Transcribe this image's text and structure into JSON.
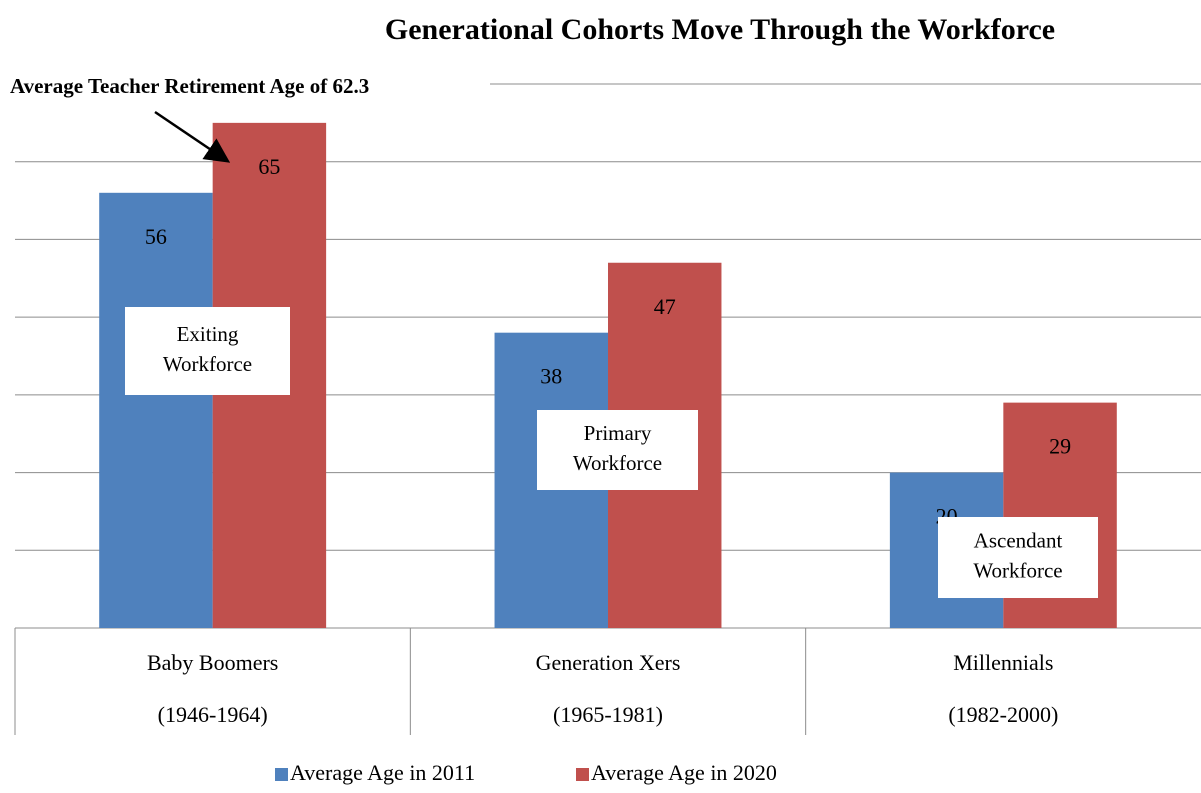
{
  "chart_data": {
    "type": "bar",
    "title": "Generational Cohorts Move Through the Workforce",
    "annotation": "Average Teacher Retirement Age of 62.3",
    "categories": [
      [
        "Baby Boomers",
        "(1946-1964)"
      ],
      [
        "Generation Xers",
        "(1965-1981)"
      ],
      [
        "Millennials",
        "(1982-2000)"
      ]
    ],
    "series": [
      {
        "name": "Average Age in 2011",
        "color": "#4f81bd",
        "values": [
          56,
          38,
          20
        ]
      },
      {
        "name": "Average Age in 2020",
        "color": "#c0504d",
        "values": [
          65,
          47,
          29
        ]
      }
    ],
    "group_labels": [
      [
        "Exiting",
        "Workforce"
      ],
      [
        "Primary",
        "Workforce"
      ],
      [
        "Ascendant",
        "Workforce"
      ]
    ],
    "ylim": [
      0,
      70
    ],
    "yticks": [
      0,
      10,
      20,
      30,
      40,
      50,
      60,
      70
    ],
    "grid": true,
    "legend": "bottom"
  }
}
